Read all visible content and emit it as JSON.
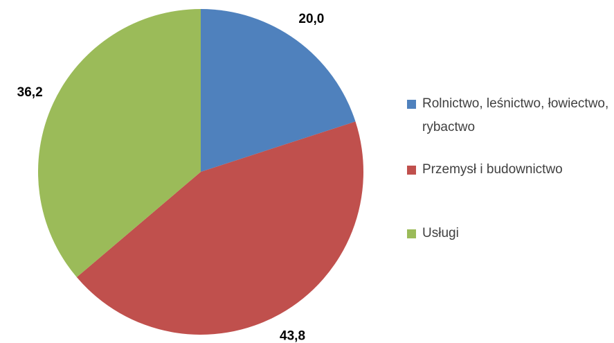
{
  "chart_data": {
    "type": "pie",
    "categories": [
      "Rolnictwo, leśnictwo, łowiectwo, rybactwo",
      "Przemysł i budownictwo",
      "Usługi"
    ],
    "values": [
      20.0,
      43.8,
      36.2
    ],
    "value_labels": [
      "20,0",
      "43,8",
      "36,2"
    ],
    "colors": [
      "#4f81bd",
      "#c0504d",
      "#9bbb59"
    ],
    "legend": "right"
  }
}
